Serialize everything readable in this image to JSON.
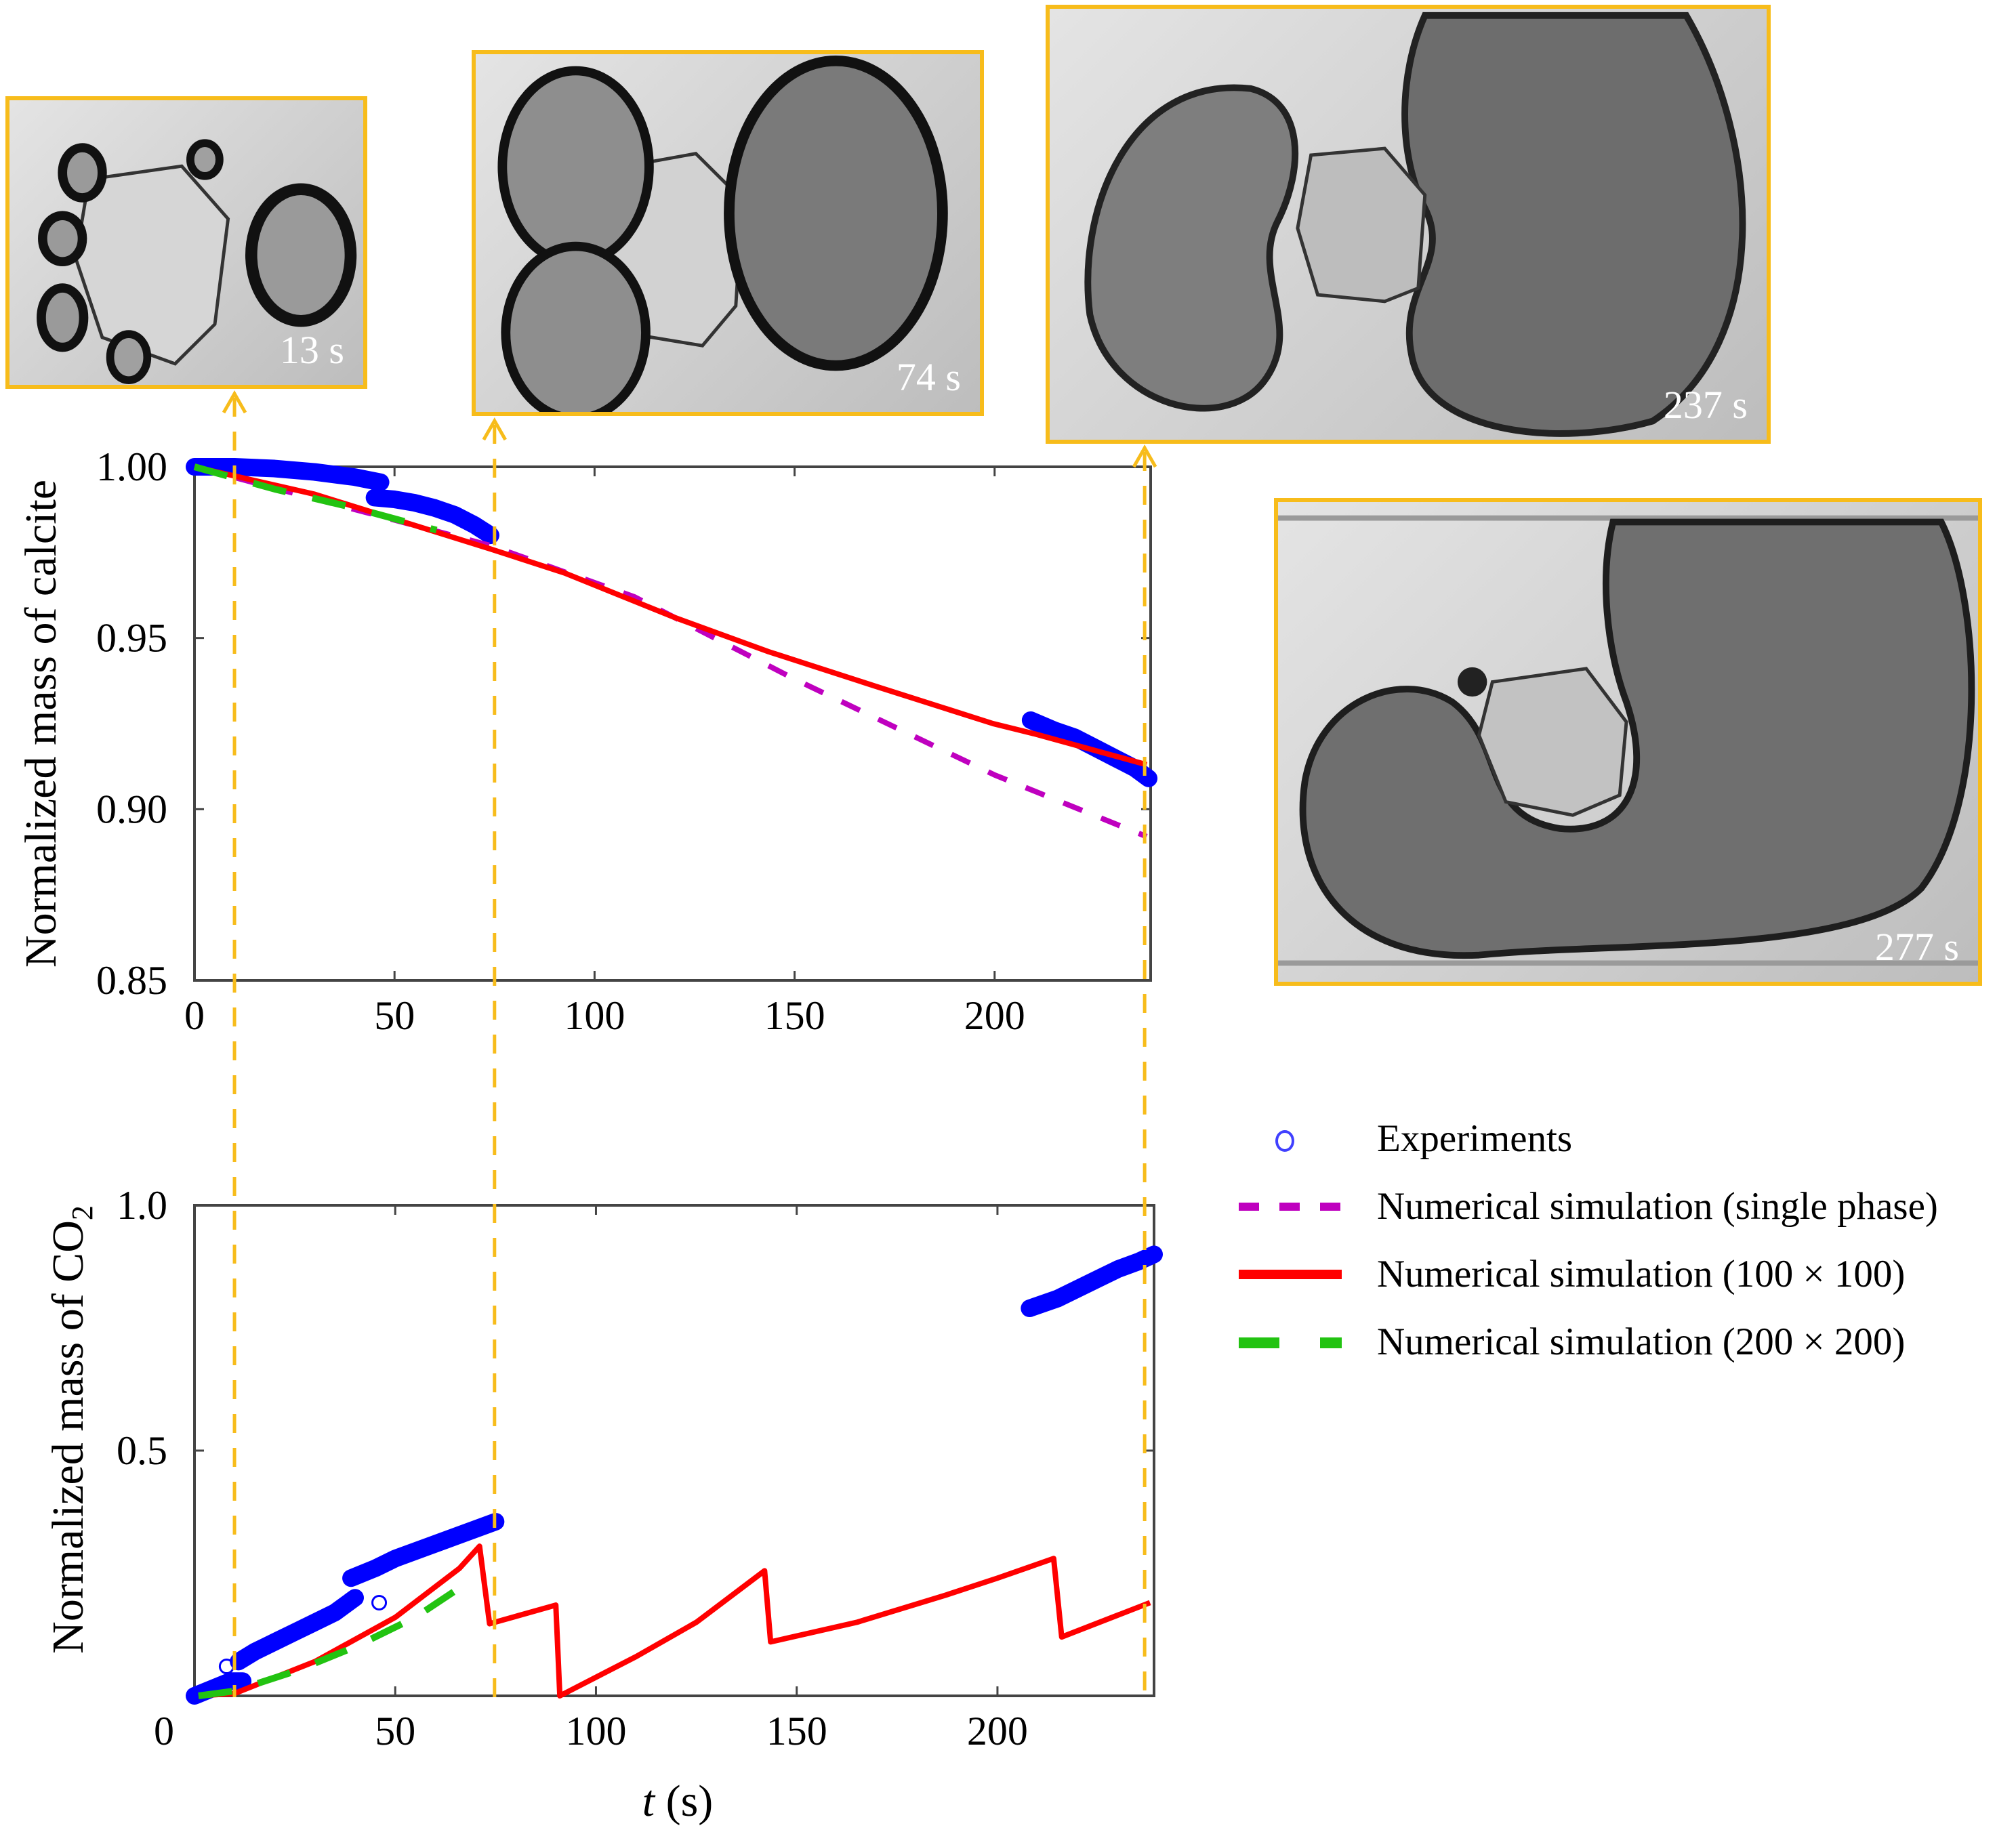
{
  "figure": {
    "insets": [
      {
        "label": "13 s",
        "time_s": 13
      },
      {
        "label": "74 s",
        "time_s": 74
      },
      {
        "label": "237 s",
        "time_s": 237
      },
      {
        "label": "277 s",
        "time_s": 277
      }
    ],
    "legend": [
      {
        "label": "Experiments",
        "style": "circle-marker",
        "color": "#0000ff"
      },
      {
        "label": "Numerical simulation (single phase)",
        "style": "dashed",
        "color": "#bf00bf"
      },
      {
        "label": "Numerical simulation (100 × 100)",
        "style": "solid",
        "color": "#ff0000"
      },
      {
        "label": "Numerical simulation (200 × 200)",
        "style": "long-dashed",
        "color": "#22c311"
      }
    ],
    "marker_line_color": "#f7bc1b",
    "marker_times": [
      10,
      75,
      237.5
    ]
  },
  "chart_data": [
    {
      "type": "line",
      "title": "",
      "xlabel": "",
      "ylabel": "Normalized mass of calcite",
      "xlim": [
        0,
        239
      ],
      "ylim": [
        0.85,
        1.0
      ],
      "xticks": [
        0,
        50,
        100,
        150,
        200
      ],
      "yticks": [
        0.85,
        0.9,
        0.95,
        1.0
      ],
      "ytick_labels": [
        "0.85",
        "0.90",
        "0.95",
        "1.00"
      ],
      "grid": false,
      "series": [
        {
          "name": "Experiments",
          "style": "markers",
          "color": "#0000ff",
          "segments": [
            {
              "t": [
                0,
                10,
                20,
                30,
                40,
                46.5
              ],
              "v": [
                1.0,
                1.0,
                0.9995,
                0.9985,
                0.997,
                0.9955
              ]
            },
            {
              "t": [
                45,
                50,
                55,
                60,
                65,
                70,
                74
              ],
              "v": [
                0.991,
                0.9905,
                0.9895,
                0.988,
                0.986,
                0.983,
                0.98
              ]
            },
            {
              "t": [
                209,
                215,
                220,
                225,
                230,
                235,
                238.5
              ],
              "v": [
                0.926,
                0.923,
                0.921,
                0.918,
                0.915,
                0.912,
                0.909
              ]
            }
          ]
        },
        {
          "name": "Numerical simulation (single phase)",
          "style": "dashed",
          "color": "#bf00bf",
          "t": [
            0,
            74,
            110,
            150,
            200,
            238
          ],
          "v": [
            1.0,
            0.977,
            0.962,
            0.938,
            0.91,
            0.892
          ]
        },
        {
          "name": "Numerical simulation (100 × 100)",
          "style": "solid",
          "color": "#ff0000",
          "t": [
            0,
            30,
            74,
            92.5,
            120,
            143.5,
            170,
            199.6,
            210,
            238
          ],
          "v": [
            1.0,
            0.992,
            0.976,
            0.969,
            0.956,
            0.946,
            0.936,
            0.925,
            0.922,
            0.913
          ]
        },
        {
          "name": "Numerical simulation (200 × 200)",
          "style": "long-dashed",
          "color": "#22c311",
          "t": [
            0,
            20,
            40,
            60.5
          ],
          "v": [
            1.0,
            0.9935,
            0.988,
            0.9815
          ]
        }
      ]
    },
    {
      "type": "line",
      "title": "",
      "xlabel": "t (s)",
      "ylabel": "Normalized mass of CO2",
      "xlim": [
        0,
        239
      ],
      "ylim": [
        0,
        1.0
      ],
      "xticks": [
        0,
        50,
        100,
        150,
        200
      ],
      "yticks": [
        0,
        0.5,
        1.0
      ],
      "ytick_labels": [
        "0",
        "0.5",
        "1.0"
      ],
      "grid": false,
      "series": [
        {
          "name": "Experiments",
          "style": "markers",
          "color": "#0000ff",
          "segments": [
            {
              "t": [
                0,
                3,
                6,
                9,
                12
              ],
              "v": [
                0.0,
                0.01,
                0.02,
                0.03,
                0.03
              ]
            },
            {
              "t": [
                11,
                15,
                20,
                25,
                30,
                35,
                40
              ],
              "v": [
                0.07,
                0.09,
                0.11,
                0.13,
                0.15,
                0.17,
                0.2
              ]
            },
            {
              "t": [
                39,
                45,
                50,
                55,
                60,
                65,
                70,
                75
              ],
              "v": [
                0.24,
                0.26,
                0.28,
                0.295,
                0.31,
                0.325,
                0.34,
                0.355
              ]
            },
            {
              "t": [
                208,
                215,
                220,
                225,
                230,
                235,
                239
              ],
              "v": [
                0.79,
                0.81,
                0.83,
                0.85,
                0.87,
                0.885,
                0.9
              ]
            }
          ],
          "outliers": [
            {
              "t": 8,
              "v": 0.06
            },
            {
              "t": 46,
              "v": 0.19
            }
          ]
        },
        {
          "name": "Numerical simulation (100 × 100)",
          "style": "solid",
          "color": "#ff0000",
          "t": [
            1,
            10,
            30,
            50,
            66,
            71,
            73.5,
            90,
            91,
            110,
            125,
            142,
            143.5,
            165,
            187,
            200,
            214,
            216,
            238
          ],
          "v": [
            0.0,
            0.005,
            0.07,
            0.16,
            0.26,
            0.305,
            0.147,
            0.185,
            0.0,
            0.08,
            0.15,
            0.255,
            0.11,
            0.15,
            0.205,
            0.24,
            0.28,
            0.12,
            0.19
          ]
        },
        {
          "name": "Numerical simulation (200 × 200)",
          "style": "long-dashed",
          "color": "#22c311",
          "t": [
            1,
            10,
            25,
            40,
            55,
            66
          ],
          "v": [
            0.0,
            0.01,
            0.05,
            0.1,
            0.16,
            0.22
          ]
        }
      ]
    }
  ]
}
